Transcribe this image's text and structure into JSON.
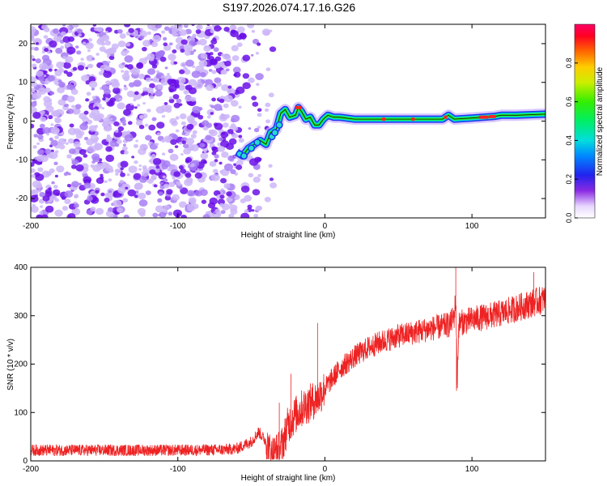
{
  "title": "S197.2026.074.17.16.G26",
  "colors": {
    "snr_line": "#ee2222",
    "noise_purple_dark": "#6a0fe8",
    "noise_purple_light": "#cdb6f8",
    "axes": "#000000"
  },
  "chart_data": [
    {
      "type": "heatmap",
      "name": "spectrogram",
      "xlabel": "Height of straight line (km)",
      "ylabel": "Frequency (Hz)",
      "xlim": [
        -200,
        150
      ],
      "ylim": [
        -25,
        25
      ],
      "xticks": [
        -200,
        -100,
        0,
        100
      ],
      "xtick_labels": [
        "-200",
        "-100",
        "0",
        "100"
      ],
      "yticks": [
        -20,
        -10,
        0,
        10,
        20
      ],
      "ytick_labels": [
        "-20",
        "-10",
        "0",
        "10",
        "20"
      ],
      "noise_region_x": [
        -200,
        -35
      ],
      "noise_gap_x": [
        -44,
        -40
      ],
      "signal_track": {
        "x": [
          -60,
          -56,
          -52,
          -48,
          -44,
          -40,
          -37,
          -33,
          -30,
          -27,
          -24,
          -20,
          -18,
          -16,
          -13,
          -10,
          -7,
          -4,
          -1,
          2,
          6,
          10,
          20,
          40,
          60,
          80,
          84,
          88,
          100,
          115,
          120,
          130,
          150
        ],
        "y": [
          -8,
          -9,
          -7,
          -6,
          -5,
          -6,
          -3,
          -2,
          2,
          3,
          1,
          1.5,
          3.5,
          2.5,
          0.5,
          1,
          -1,
          -1,
          0.5,
          1.5,
          1,
          1,
          0.5,
          0.5,
          0.5,
          0.5,
          1.5,
          0.5,
          0.8,
          1.2,
          1.5,
          1.5,
          1.8
        ]
      },
      "colorbar": {
        "label": "Normalized spectral amplitude",
        "range": [
          0,
          1
        ],
        "ticks": [
          0.0,
          0.2,
          0.4,
          0.6,
          0.8
        ],
        "tick_labels": [
          "0.0",
          "0.2",
          "0.4",
          "0.6",
          "0.8"
        ]
      }
    },
    {
      "type": "line",
      "name": "snr",
      "xlabel": "Height of straight line (km)",
      "ylabel": "SNR (10 * v/v)",
      "xlim": [
        -200,
        150
      ],
      "ylim": [
        0,
        400
      ],
      "xticks": [
        -200,
        -100,
        0,
        100
      ],
      "xtick_labels": [
        "-200",
        "-100",
        "0",
        "100"
      ],
      "yticks": [
        0,
        100,
        200,
        300,
        400
      ],
      "ytick_labels": [
        "0",
        "100",
        "200",
        "300",
        "400"
      ],
      "series": [
        {
          "name": "SNR",
          "x": [
            -200,
            -150,
            -100,
            -70,
            -60,
            -50,
            -45,
            -40,
            -38,
            -35,
            -30,
            -25,
            -20,
            -15,
            -10,
            -5,
            0,
            10,
            20,
            30,
            40,
            50,
            60,
            70,
            80,
            85,
            88,
            89,
            90,
            91,
            92,
            95,
            100,
            110,
            120,
            130,
            140,
            150
          ],
          "y": [
            22,
            22,
            22,
            23,
            25,
            40,
            60,
            40,
            20,
            15,
            25,
            75,
            95,
            110,
            120,
            130,
            150,
            190,
            215,
            235,
            248,
            258,
            265,
            272,
            278,
            282,
            300,
            340,
            165,
            280,
            285,
            288,
            292,
            298,
            305,
            315,
            325,
            335
          ],
          "spikes": [
            {
              "x": -31,
              "y": 120
            },
            {
              "x": -23,
              "y": 180
            },
            {
              "x": -5,
              "y": 285
            },
            {
              "x": 89,
              "y": 400
            },
            {
              "x": 89.5,
              "y": 145
            },
            {
              "x": 142,
              "y": 390
            }
          ]
        }
      ]
    }
  ]
}
